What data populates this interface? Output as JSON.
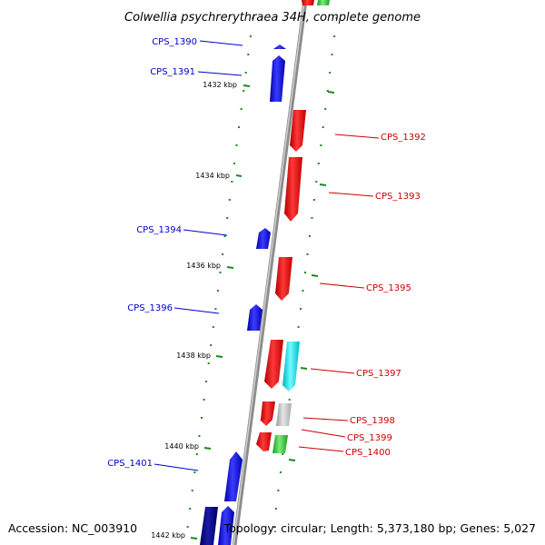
{
  "title": "Colwellia psychrerythraea 34H, complete genome",
  "footer": {
    "accession": "Accession: NC_003910",
    "topology": "Topology: circular; Length: 5,373,180 bp; Genes: 5,027"
  },
  "colors": {
    "forward_gene": "#0000ee",
    "forward_gene_dark": "#000090",
    "reverse_gene": "#ee0000",
    "feature_cyan": "#00e8f0",
    "feature_gray": "#c8c8c8",
    "feature_green": "#33cc33",
    "backbone": "#8c8c8c",
    "tick": "#1a8a1a",
    "label_forward": "#0000cc",
    "label_reverse": "#cc0000"
  },
  "scale_ticks": [
    "1432 kbp",
    "1434 kbp",
    "1436 kbp",
    "1438 kbp",
    "1440 kbp",
    "1442 kbp"
  ],
  "gene_labels": [
    {
      "text": "CPS_1390",
      "strand": "forward"
    },
    {
      "text": "CPS_1391",
      "strand": "forward"
    },
    {
      "text": "CPS_1392",
      "strand": "reverse"
    },
    {
      "text": "CPS_1393",
      "strand": "reverse"
    },
    {
      "text": "CPS_1394",
      "strand": "forward"
    },
    {
      "text": "CPS_1395",
      "strand": "reverse"
    },
    {
      "text": "CPS_1396",
      "strand": "forward"
    },
    {
      "text": "CPS_1397",
      "strand": "reverse"
    },
    {
      "text": "CPS_1398",
      "strand": "reverse"
    },
    {
      "text": "CPS_1399",
      "strand": "reverse"
    },
    {
      "text": "CPS_1400",
      "strand": "reverse"
    },
    {
      "text": "CPS_1401",
      "strand": "forward"
    }
  ]
}
